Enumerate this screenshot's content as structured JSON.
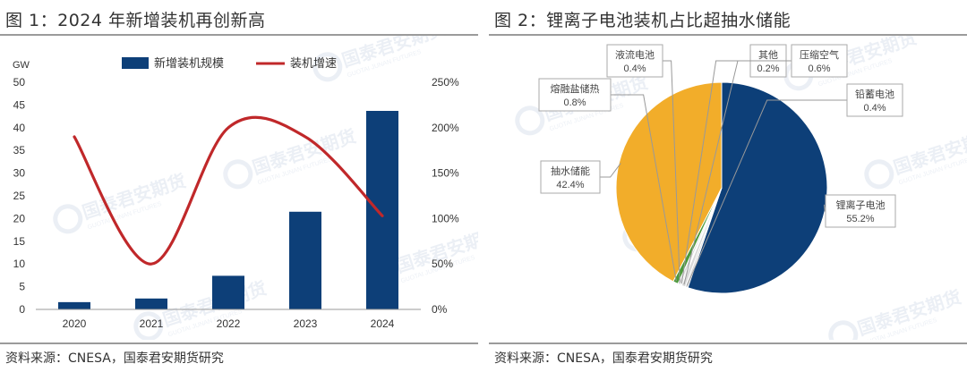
{
  "fig1": {
    "title": "图 1：2024 年新增装机再创新高",
    "source": "资料来源：CNESA，国泰君安期货研究"
  },
  "fig2": {
    "title": "图 2：锂离子电池装机占比超抽水储能",
    "source": "资料来源：CNESA，国泰君安期货研究"
  },
  "watermark": {
    "text": "国泰君安期货",
    "subtext": "GUOTAI JUNAN FUTURES"
  },
  "colors": {
    "bar": "#0d3f78",
    "line": "#c0282a",
    "li_ion": "#0d3f78",
    "pumped_hydro": "#f2ad2a",
    "molten_salt": "#4c9a3a",
    "other": "#d9d9d9"
  },
  "chart_data": [
    {
      "type": "bar",
      "categories": [
        "2020",
        "2021",
        "2022",
        "2023",
        "2024"
      ],
      "series": [
        {
          "name": "新增装机规模",
          "axis": "left",
          "values": [
            1.6,
            2.4,
            7.4,
            21.5,
            43.7
          ]
        },
        {
          "name": "装机增速",
          "axis": "right",
          "type": "line",
          "smooth": true,
          "values": [
            190,
            50,
            200,
            190,
            103
          ]
        }
      ],
      "left_axis": {
        "unit": "GW",
        "ylim": [
          0,
          50
        ],
        "ticks": [
          "0",
          "5",
          "10",
          "15",
          "20",
          "25",
          "30",
          "35",
          "40",
          "45",
          "50"
        ]
      },
      "right_axis": {
        "ylim": [
          0,
          250
        ],
        "ticks": [
          "0%",
          "50%",
          "100%",
          "150%",
          "200%",
          "250%"
        ]
      },
      "legend": "top",
      "grid": false
    },
    {
      "type": "pie",
      "slices": [
        {
          "label": "锂离子电池",
          "value": 55.2,
          "text": "55.2%",
          "color": "#0d3f78"
        },
        {
          "label": "抽水储能",
          "value": 42.4,
          "text": "42.4%",
          "color": "#f2ad2a"
        },
        {
          "label": "熔融盐储热",
          "value": 0.8,
          "text": "0.8%",
          "color": "#4c9a3a"
        },
        {
          "label": "液流电池",
          "value": 0.4,
          "text": "0.4%",
          "color": "#d9d9d9"
        },
        {
          "label": "其他",
          "value": 0.2,
          "text": "0.2%",
          "color": "#d9d9d9"
        },
        {
          "label": "压缩空气",
          "value": 0.6,
          "text": "0.6%",
          "color": "#d9d9d9"
        },
        {
          "label": "铅蓄电池",
          "value": 0.4,
          "text": "0.4%",
          "color": "#d9d9d9"
        }
      ],
      "legend": "callouts"
    }
  ]
}
